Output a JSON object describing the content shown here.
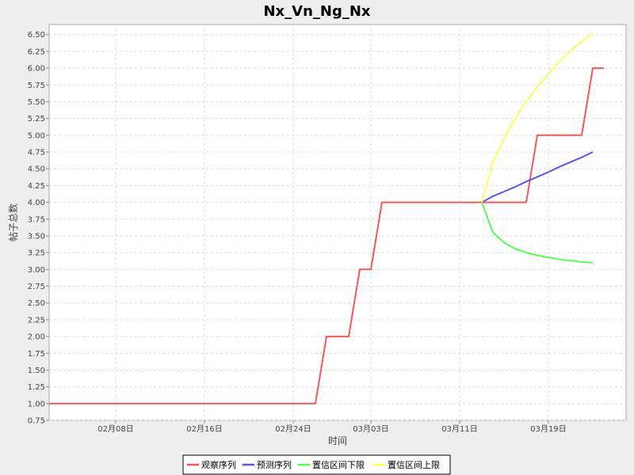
{
  "chart_data": {
    "type": "line",
    "title": "Nx_Vn_Ng_Nx",
    "xlabel": "时间",
    "ylabel": "帖子总数",
    "x_ticks": [
      "02月08日",
      "02月16日",
      "02月24日",
      "03月03日",
      "03月11日",
      "03月19日"
    ],
    "y_ticks": [
      "0.75",
      "1.00",
      "1.25",
      "1.50",
      "1.75",
      "2.00",
      "2.25",
      "2.50",
      "2.75",
      "3.00",
      "3.25",
      "3.50",
      "3.75",
      "4.00",
      "4.25",
      "4.50",
      "4.75",
      "5.00",
      "5.25",
      "5.50",
      "5.75",
      "6.00",
      "6.25",
      "6.50"
    ],
    "ylim": [
      0.75,
      6.65
    ],
    "x_domain": [
      "2014-02-02",
      "2014-03-26"
    ],
    "grid": true,
    "legend_position": "bottom",
    "series": [
      {
        "name": "观察序列",
        "color": "#ff5555",
        "points": [
          [
            "2014-02-02",
            1.0
          ],
          [
            "2014-02-03",
            1.0
          ],
          [
            "2014-02-04",
            1.0
          ],
          [
            "2014-02-05",
            1.0
          ],
          [
            "2014-02-06",
            1.0
          ],
          [
            "2014-02-07",
            1.0
          ],
          [
            "2014-02-08",
            1.0
          ],
          [
            "2014-02-09",
            1.0
          ],
          [
            "2014-02-10",
            1.0
          ],
          [
            "2014-02-11",
            1.0
          ],
          [
            "2014-02-12",
            1.0
          ],
          [
            "2014-02-13",
            1.0
          ],
          [
            "2014-02-14",
            1.0
          ],
          [
            "2014-02-15",
            1.0
          ],
          [
            "2014-02-16",
            1.0
          ],
          [
            "2014-02-17",
            1.0
          ],
          [
            "2014-02-18",
            1.0
          ],
          [
            "2014-02-19",
            1.0
          ],
          [
            "2014-02-20",
            1.0
          ],
          [
            "2014-02-21",
            1.0
          ],
          [
            "2014-02-22",
            1.0
          ],
          [
            "2014-02-23",
            1.0
          ],
          [
            "2014-02-24",
            1.0
          ],
          [
            "2014-02-25",
            1.0
          ],
          [
            "2014-02-26",
            1.0
          ],
          [
            "2014-02-27",
            2.0
          ],
          [
            "2014-02-28",
            2.0
          ],
          [
            "2014-03-01",
            2.0
          ],
          [
            "2014-03-02",
            3.0
          ],
          [
            "2014-03-03",
            3.0
          ],
          [
            "2014-03-04",
            4.0
          ],
          [
            "2014-03-05",
            4.0
          ],
          [
            "2014-03-06",
            4.0
          ],
          [
            "2014-03-07",
            4.0
          ],
          [
            "2014-03-08",
            4.0
          ],
          [
            "2014-03-09",
            4.0
          ],
          [
            "2014-03-10",
            4.0
          ],
          [
            "2014-03-11",
            4.0
          ],
          [
            "2014-03-12",
            4.0
          ],
          [
            "2014-03-13",
            4.0
          ],
          [
            "2014-03-14",
            4.0
          ],
          [
            "2014-03-15",
            4.0
          ],
          [
            "2014-03-16",
            4.0
          ],
          [
            "2014-03-17",
            4.0
          ],
          [
            "2014-03-18",
            5.0
          ],
          [
            "2014-03-19",
            5.0
          ],
          [
            "2014-03-20",
            5.0
          ],
          [
            "2014-03-21",
            5.0
          ],
          [
            "2014-03-22",
            5.0
          ],
          [
            "2014-03-23",
            6.0
          ],
          [
            "2014-03-24",
            6.0
          ]
        ]
      },
      {
        "name": "预测序列",
        "color": "#5555ff",
        "points": [
          [
            "2014-03-13",
            4.0
          ],
          [
            "2014-03-14",
            4.09
          ],
          [
            "2014-03-15",
            4.16
          ],
          [
            "2014-03-16",
            4.23
          ],
          [
            "2014-03-17",
            4.31
          ],
          [
            "2014-03-18",
            4.38
          ],
          [
            "2014-03-19",
            4.45
          ],
          [
            "2014-03-20",
            4.53
          ],
          [
            "2014-03-21",
            4.6
          ],
          [
            "2014-03-22",
            4.67
          ],
          [
            "2014-03-23",
            4.75
          ]
        ]
      },
      {
        "name": "置信区间下限",
        "color": "#55ff55",
        "points": [
          [
            "2014-03-13",
            4.0
          ],
          [
            "2014-03-14",
            3.55
          ],
          [
            "2014-03-15",
            3.4
          ],
          [
            "2014-03-16",
            3.31
          ],
          [
            "2014-03-17",
            3.25
          ],
          [
            "2014-03-18",
            3.21
          ],
          [
            "2014-03-19",
            3.18
          ],
          [
            "2014-03-20",
            3.15
          ],
          [
            "2014-03-21",
            3.13
          ],
          [
            "2014-03-22",
            3.11
          ],
          [
            "2014-03-23",
            3.1
          ]
        ]
      },
      {
        "name": "置信区间上限",
        "color": "#ffff55",
        "points": [
          [
            "2014-03-13",
            4.0
          ],
          [
            "2014-03-14",
            4.6
          ],
          [
            "2014-03-15",
            4.95
          ],
          [
            "2014-03-16",
            5.25
          ],
          [
            "2014-03-17",
            5.5
          ],
          [
            "2014-03-18",
            5.72
          ],
          [
            "2014-03-19",
            5.92
          ],
          [
            "2014-03-20",
            6.1
          ],
          [
            "2014-03-21",
            6.26
          ],
          [
            "2014-03-22",
            6.4
          ],
          [
            "2014-03-23",
            6.52
          ]
        ]
      }
    ]
  }
}
